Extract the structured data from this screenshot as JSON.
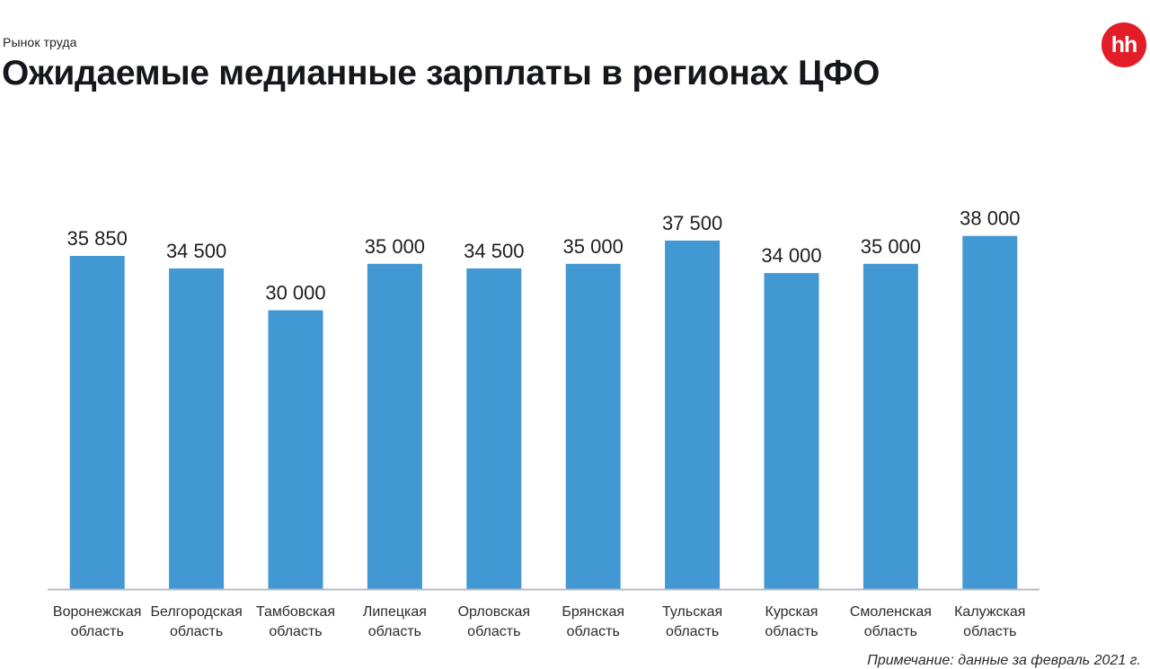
{
  "header": {
    "label": "Рынок труда",
    "title": "Ожидаемые медианные зарплаты в регионах ЦФО",
    "logo_text": "hh",
    "logo_color": "#e21d28"
  },
  "footnote": "Примечание: данные за февраль 2021 г.",
  "chart_data": {
    "type": "bar",
    "title": "Ожидаемые медианные зарплаты в регионах ЦФО",
    "categories": [
      [
        "Воронежская",
        "область"
      ],
      [
        "Белгородская",
        "область"
      ],
      [
        "Тамбовская",
        "область"
      ],
      [
        "Липецкая",
        "область"
      ],
      [
        "Орловская",
        "область"
      ],
      [
        "Брянская",
        "область"
      ],
      [
        "Тульская",
        "область"
      ],
      [
        "Курская",
        "область"
      ],
      [
        "Смоленская",
        "область"
      ],
      [
        "Калужская",
        "область"
      ]
    ],
    "values": [
      35850,
      34500,
      30000,
      35000,
      34500,
      35000,
      37500,
      34000,
      35000,
      38000
    ],
    "value_labels": [
      "35 850",
      "34 500",
      "30 000",
      "35 000",
      "34 500",
      "35 000",
      "37 500",
      "34 000",
      "35 000",
      "38 000"
    ],
    "xlabel": "",
    "ylabel": "",
    "ylim": [
      0,
      40000
    ],
    "grid": false,
    "bar_color": "#4298d3",
    "axis_color": "#b8bcc4"
  }
}
